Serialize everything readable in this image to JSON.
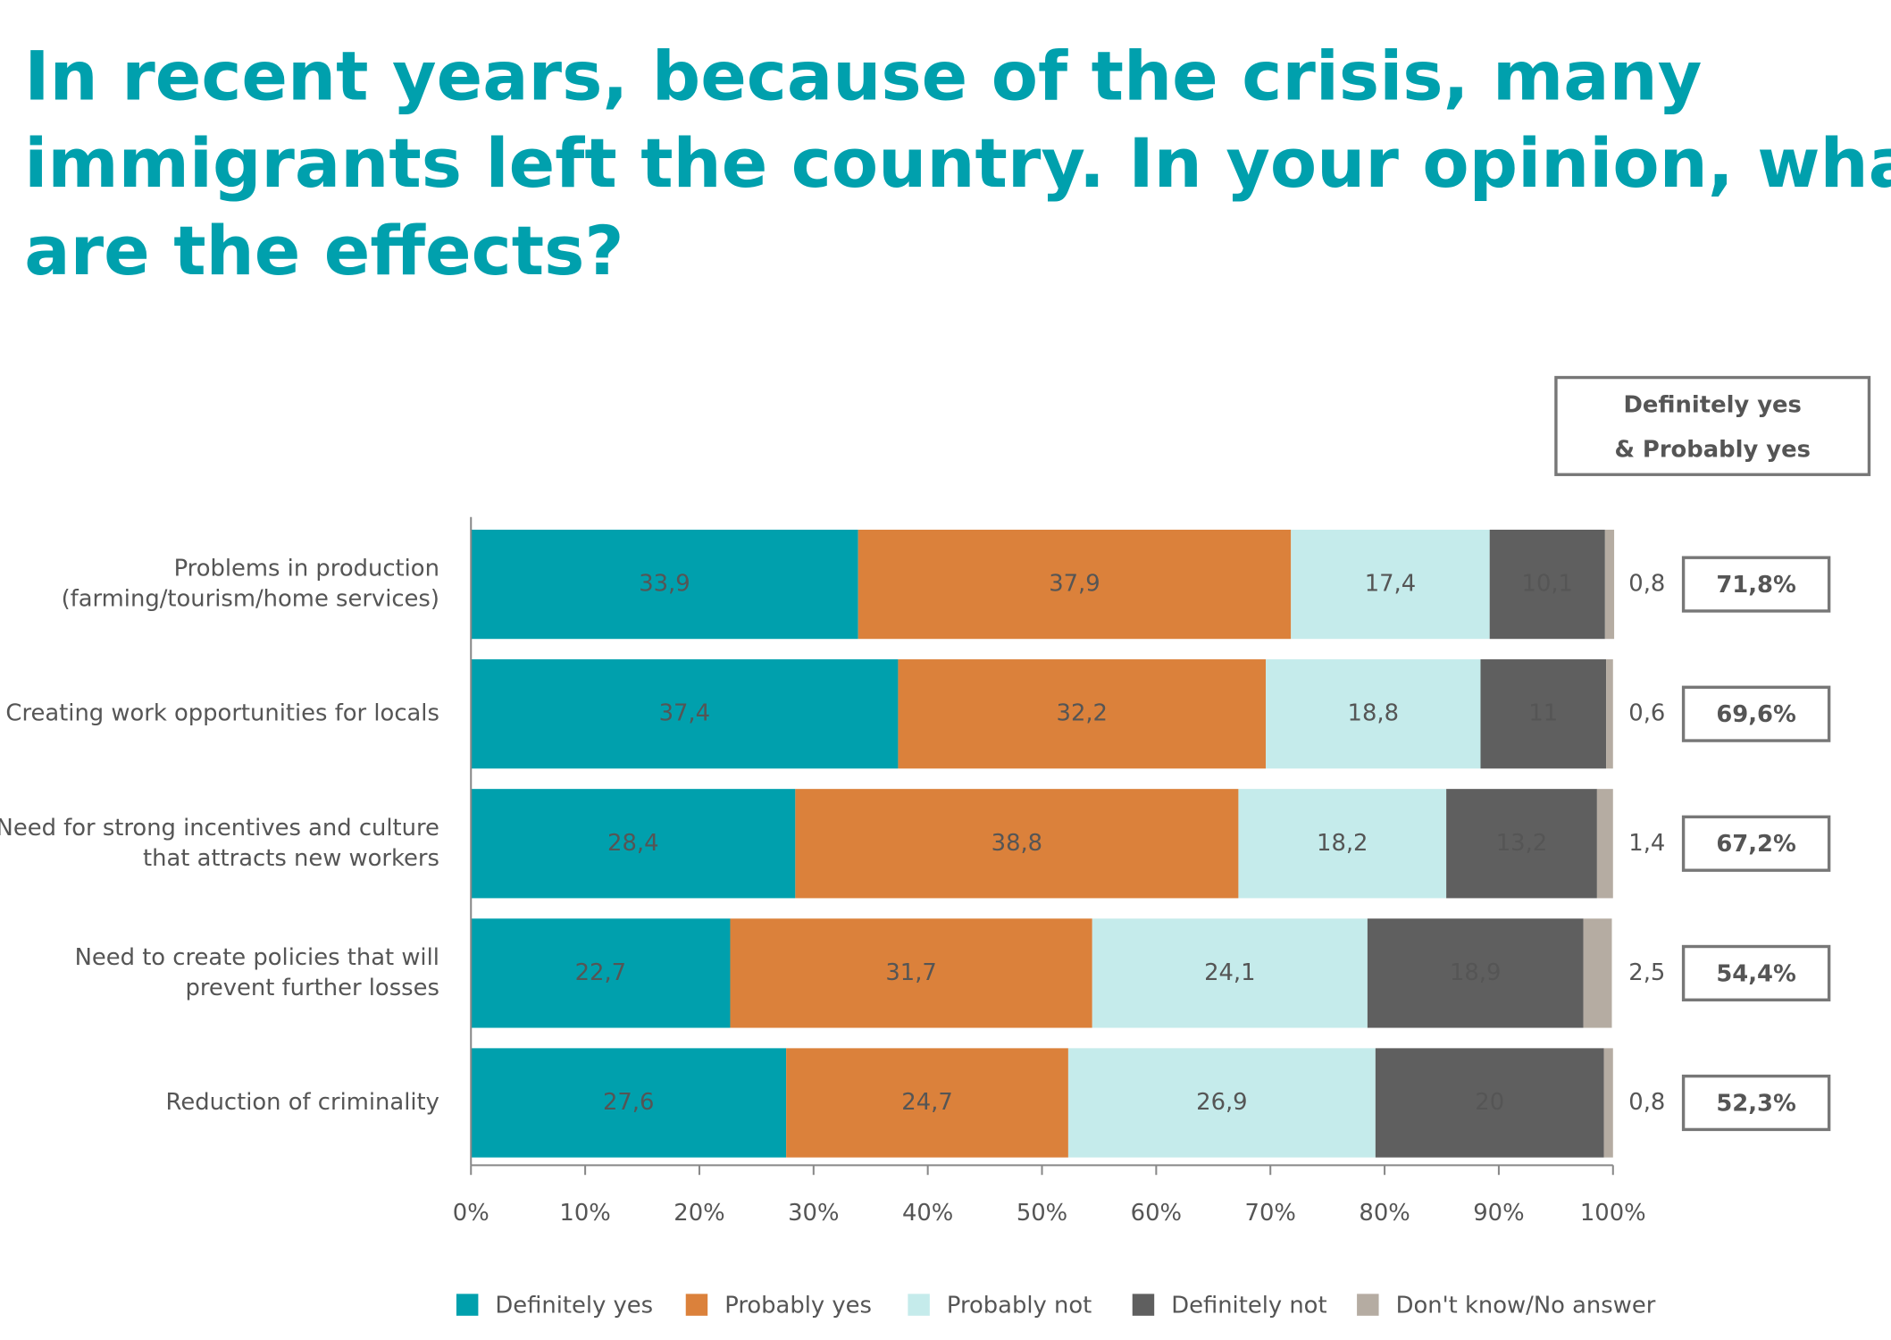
{
  "chart_data": {
    "type": "stacked-barh",
    "title": [
      "In recent years, because of the crisis, many",
      "immigrants left the country. In your opinion, what",
      "are the effects?"
    ],
    "categories": [
      [
        "Problems in production",
        "(farming/tourism/home services)"
      ],
      [
        "Creating work opportunities for locals"
      ],
      [
        "Need for strong incentives and culture",
        "that attracts new workers"
      ],
      [
        "Need to create policies that will",
        "prevent further losses"
      ],
      [
        "Reduction of criminality"
      ]
    ],
    "series": [
      {
        "name": "Definitely yes",
        "color": "#00a0ad",
        "label_color": "#ffffff",
        "values": [
          33.9,
          37.4,
          28.4,
          22.7,
          27.6
        ],
        "value_labels": [
          "33,9",
          "37,4",
          "28,4",
          "22,7",
          "27,6"
        ]
      },
      {
        "name": "Probably yes",
        "color": "#db813b",
        "label_color": "#ffffff",
        "values": [
          37.9,
          32.2,
          38.8,
          31.7,
          24.7
        ],
        "value_labels": [
          "37,9",
          "32,2",
          "38,8",
          "31,7",
          "24,7"
        ]
      },
      {
        "name": "Probably not",
        "color": "#c5ebeb",
        "label_color": "#555555",
        "values": [
          17.4,
          18.8,
          18.2,
          24.1,
          26.9
        ],
        "value_labels": [
          "17,4",
          "18,8",
          "18,2",
          "24,1",
          "26,9"
        ]
      },
      {
        "name": "Definitely not",
        "color": "#5f5f5f",
        "label_color": "#ffffff",
        "values": [
          10.1,
          11,
          13.2,
          18.9,
          20
        ],
        "value_labels": [
          "10,1",
          "11",
          "13,2",
          "18,9",
          "20"
        ]
      },
      {
        "name": "Don't know/No answer",
        "color": "#b5aca2",
        "label_color": "#555555",
        "outside_labels": true,
        "values": [
          0.8,
          0.6,
          1.4,
          2.5,
          0.8
        ],
        "value_labels": [
          "0,8",
          "0,6",
          "1,4",
          "2,5",
          "0,8"
        ]
      }
    ],
    "xlim": [
      0,
      100
    ],
    "xticks": [
      {
        "value": 0,
        "label": "0%"
      },
      {
        "value": 10,
        "label": "10%"
      },
      {
        "value": 20,
        "label": "20%"
      },
      {
        "value": 30,
        "label": "30%"
      },
      {
        "value": 40,
        "label": "40%"
      },
      {
        "value": 50,
        "label": "50%"
      },
      {
        "value": 60,
        "label": "60%"
      },
      {
        "value": 70,
        "label": "70%"
      },
      {
        "value": 80,
        "label": "80%"
      },
      {
        "value": 90,
        "label": "90%"
      },
      {
        "value": 100,
        "label": "100%"
      }
    ],
    "totals_title": [
      "Definitely yes",
      "& Probably yes"
    ],
    "totals": {
      "values": [
        71.8,
        69.6,
        67.2,
        54.4,
        52.3
      ],
      "value_labels": [
        "71,8%",
        "69,6%",
        "67,2%",
        "54,4%",
        "52,3%"
      ]
    },
    "legend": "bottom"
  }
}
